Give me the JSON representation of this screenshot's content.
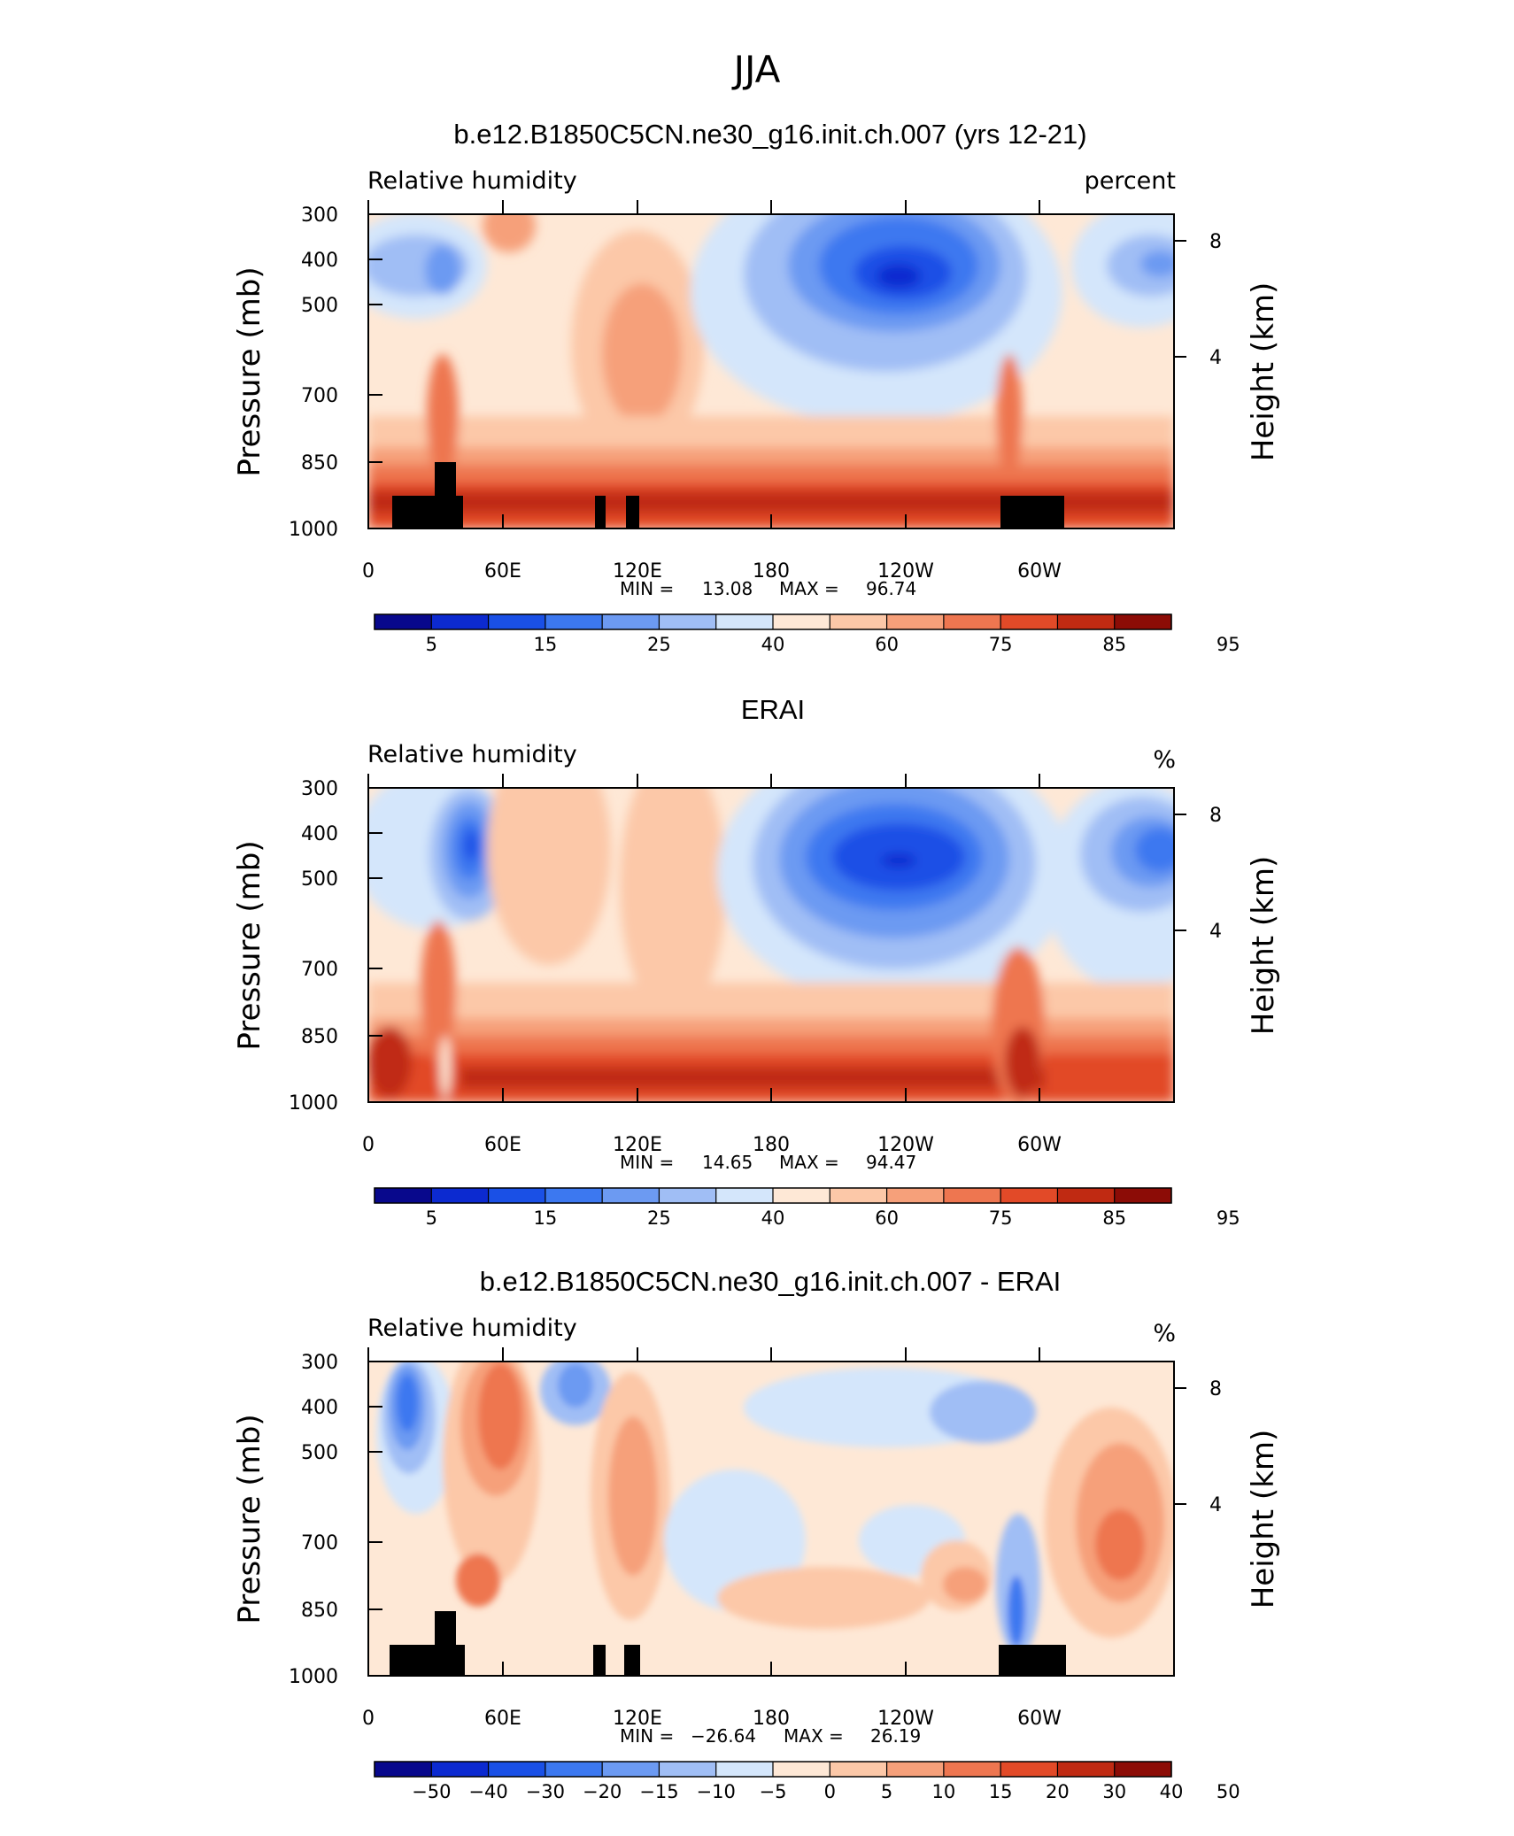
{
  "figure": {
    "title": "JJA"
  },
  "panels": [
    {
      "title": "b.e12.B1850C5CN.ne30_g16.init.ch.007 (yrs 12-21)",
      "left_label": "Relative humidity",
      "right_label": "percent",
      "min_max": {
        "min_label": "MIN =",
        "min": "13.08",
        "max_label": "MAX =",
        "max": "96.74"
      },
      "colorbar_labels": [
        "5",
        "15",
        "25",
        "40",
        "60",
        "75",
        "85",
        "95"
      ],
      "has_topography": true
    },
    {
      "title": "ERAI",
      "left_label": "Relative humidity",
      "right_label": "%",
      "min_max": {
        "min_label": "MIN =",
        "min": "14.65",
        "max_label": "MAX =",
        "max": "94.47"
      },
      "colorbar_labels": [
        "5",
        "15",
        "25",
        "40",
        "60",
        "75",
        "85",
        "95"
      ],
      "has_topography": false
    },
    {
      "title": "b.e12.B1850C5CN.ne30_g16.init.ch.007 - ERAI",
      "left_label": "Relative humidity",
      "right_label": "%",
      "min_max": {
        "min_label": "MIN =",
        "min": "−26.64",
        "max_label": "MAX =",
        "max": "26.19"
      },
      "colorbar_labels": [
        "−50",
        "−40",
        "−30",
        "−20",
        "−15",
        "−10",
        "−5",
        "0",
        "5",
        "10",
        "15",
        "20",
        "30",
        "40",
        "50"
      ],
      "has_topography": true
    }
  ],
  "axes": {
    "ylabel": "Pressure (mb)",
    "y2label": "Height (km)",
    "y_ticks": [
      "300",
      "400",
      "500",
      "700",
      "850",
      "1000"
    ],
    "y2_ticks": [
      "8",
      "4"
    ],
    "x_ticks": [
      "0",
      "60E",
      "120E",
      "180",
      "120W",
      "60W"
    ]
  },
  "colors": {
    "full_scale": [
      "#08088c",
      "#0c2ad0",
      "#1a50e6",
      "#3c78f0",
      "#6c9af2",
      "#a0bef5",
      "#d4e6fb",
      "#fee8d6",
      "#fcc8a8",
      "#f6a07a",
      "#ee7650",
      "#e24a28",
      "#c02a12",
      "#8c0c06"
    ],
    "diff_scale": [
      "#08088c",
      "#0c2ad0",
      "#1a50e6",
      "#3c78f0",
      "#6c9af2",
      "#a0bef5",
      "#d4e6fb",
      "#fee8d6",
      "#fcc8a8",
      "#f6a07a",
      "#ee7650",
      "#e24a28",
      "#c02a12",
      "#8c0c06"
    ],
    "topography": "#000000"
  },
  "chart_data": [
    {
      "type": "heatmap",
      "title": "b.e12.B1850C5CN.ne30_g16.init.ch.007 (yrs 12-21)",
      "xlabel": "",
      "ylabel": "Pressure (mb)",
      "y2label": "Height (km)",
      "xlim_deg": [
        0,
        360
      ],
      "ylim_mb": [
        1000,
        300
      ],
      "y_scale": "log",
      "levels": [
        5,
        10,
        15,
        20,
        25,
        30,
        40,
        50,
        60,
        70,
        75,
        80,
        85,
        90,
        95
      ],
      "min": 13.08,
      "max": 96.74,
      "features": [
        {
          "desc": "dry core",
          "lon": 210,
          "p": 430,
          "value": 15
        },
        {
          "desc": "dry core",
          "lon": 345,
          "p": 420,
          "value": 27
        },
        {
          "desc": "dry core",
          "lon": 35,
          "p": 420,
          "value": 30
        },
        {
          "desc": "moist column",
          "lon": 120,
          "p": 600,
          "value": 75
        },
        {
          "desc": "boundary layer",
          "lon": 180,
          "p": 950,
          "value": 88
        }
      ]
    },
    {
      "type": "heatmap",
      "title": "ERAI",
      "xlabel": "",
      "ylabel": "Pressure (mb)",
      "y2label": "Height (km)",
      "xlim_deg": [
        0,
        360
      ],
      "ylim_mb": [
        1000,
        300
      ],
      "y_scale": "log",
      "levels": [
        5,
        10,
        15,
        20,
        25,
        30,
        40,
        50,
        60,
        70,
        75,
        80,
        85,
        90,
        95
      ],
      "min": 14.65,
      "max": 94.47,
      "features": [
        {
          "desc": "dry core",
          "lon": 235,
          "p": 430,
          "value": 17
        },
        {
          "desc": "dry core",
          "lon": 340,
          "p": 430,
          "value": 24
        },
        {
          "desc": "dry core",
          "lon": 45,
          "p": 420,
          "value": 22
        },
        {
          "desc": "boundary layer",
          "lon": 180,
          "p": 950,
          "value": 85
        }
      ]
    },
    {
      "type": "heatmap",
      "title": "b.e12.B1850C5CN.ne30_g16.init.ch.007 - ERAI",
      "xlabel": "",
      "ylabel": "Pressure (mb)",
      "y2label": "Height (km)",
      "xlim_deg": [
        0,
        360
      ],
      "ylim_mb": [
        1000,
        300
      ],
      "y_scale": "log",
      "levels": [
        -50,
        -40,
        -30,
        -20,
        -15,
        -10,
        -5,
        0,
        5,
        10,
        15,
        20,
        30,
        40,
        50
      ],
      "min": -26.64,
      "max": 26.19,
      "features": [
        {
          "desc": "dry bias",
          "lon": 15,
          "p": 420,
          "value": -22
        },
        {
          "desc": "wet bias",
          "lon": 60,
          "p": 420,
          "value": 20
        },
        {
          "desc": "wet bias",
          "lon": 117,
          "p": 520,
          "value": 16
        },
        {
          "desc": "wet bias",
          "lon": 340,
          "p": 650,
          "value": 18
        },
        {
          "desc": "dry bias",
          "lon": 285,
          "p": 900,
          "value": -20
        }
      ]
    }
  ]
}
